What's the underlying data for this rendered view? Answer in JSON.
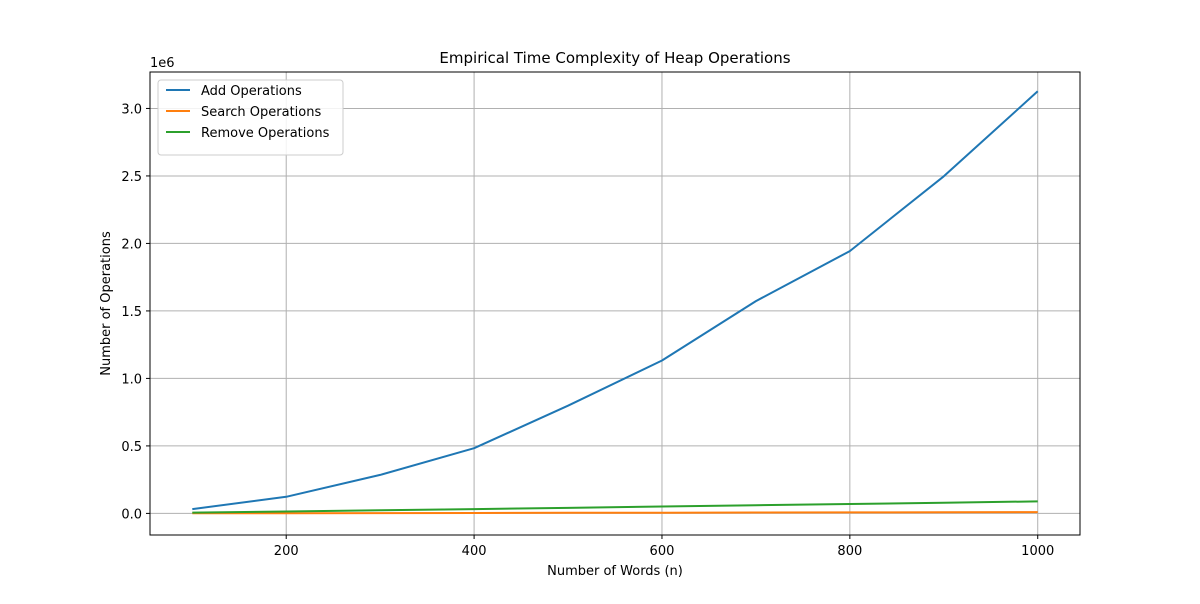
{
  "chart_data": {
    "type": "line",
    "title": "Empirical Time Complexity of Heap Operations",
    "xlabel": "Number of Words (n)",
    "ylabel": "Number of Operations",
    "y_offset_label": "1e6",
    "y_scale_factor": 1000000,
    "xlim": [
      55,
      1045
    ],
    "ylim": [
      -160000,
      3270000
    ],
    "x_ticks": [
      200,
      400,
      600,
      800,
      1000
    ],
    "x_tick_labels": [
      "200",
      "400",
      "600",
      "800",
      "1000"
    ],
    "y_ticks": [
      0,
      500000,
      1000000,
      1500000,
      2000000,
      2500000,
      3000000
    ],
    "y_tick_labels": [
      "0.0",
      "0.5",
      "1.0",
      "1.5",
      "2.0",
      "2.5",
      "3.0"
    ],
    "grid": true,
    "legend_position": "top-left",
    "x": [
      100,
      200,
      300,
      400,
      500,
      600,
      700,
      800,
      900,
      1000
    ],
    "series": [
      {
        "name": "Add Operations",
        "color": "#1f77b4",
        "values": [
          32000,
          123000,
          285000,
          483000,
          798000,
          1133000,
          1573000,
          1943000,
          2497000,
          3127000
        ]
      },
      {
        "name": "Search Operations",
        "color": "#ff7f0e",
        "values": [
          600,
          1400,
          2300,
          3300,
          4300,
          5300,
          6500,
          7500,
          8700,
          9900
        ]
      },
      {
        "name": "Remove Operations",
        "color": "#2ca02c",
        "values": [
          6000,
          14000,
          23000,
          32000,
          41000,
          51000,
          61000,
          70000,
          79000,
          89000
        ]
      }
    ]
  }
}
